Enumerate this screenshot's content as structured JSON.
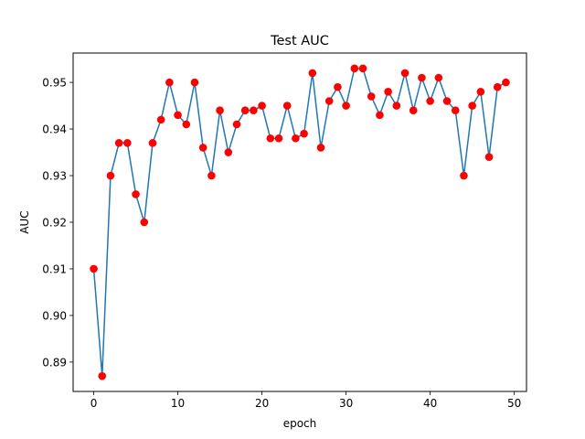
{
  "chart_data": {
    "type": "line",
    "title": "Test AUC",
    "xlabel": "epoch",
    "ylabel": "AUC",
    "xlim": [
      -2.45,
      51.45
    ],
    "ylim": [
      0.8837,
      0.9563
    ],
    "xticks": [
      0,
      10,
      20,
      30,
      40,
      50
    ],
    "yticks": [
      0.89,
      0.9,
      0.91,
      0.92,
      0.93,
      0.94,
      0.95
    ],
    "ytick_labels": [
      "0.89",
      "0.90",
      "0.91",
      "0.92",
      "0.93",
      "0.94",
      "0.95"
    ],
    "grid": false,
    "line_color": "#1f77b4",
    "marker_color": "#ff0000",
    "series": [
      {
        "x": [
          0,
          1,
          2,
          3,
          4,
          5,
          6,
          7,
          8,
          9,
          10,
          11,
          12,
          13,
          14,
          15,
          16,
          17,
          18,
          19,
          20,
          21,
          22,
          23,
          24,
          25,
          26,
          27,
          28,
          29,
          30,
          31,
          32,
          33,
          34,
          35,
          36,
          37,
          38,
          39,
          40,
          41,
          42,
          43,
          44,
          45,
          46,
          47,
          48,
          49
        ],
        "values": [
          0.91,
          0.887,
          0.93,
          0.937,
          0.937,
          0.926,
          0.92,
          0.937,
          0.942,
          0.95,
          0.943,
          0.941,
          0.95,
          0.936,
          0.93,
          0.944,
          0.935,
          0.941,
          0.944,
          0.944,
          0.945,
          0.938,
          0.938,
          0.945,
          0.938,
          0.939,
          0.952,
          0.936,
          0.946,
          0.949,
          0.945,
          0.953,
          0.953,
          0.947,
          0.943,
          0.948,
          0.945,
          0.952,
          0.944,
          0.951,
          0.946,
          0.951,
          0.946,
          0.944,
          0.93,
          0.945,
          0.948,
          0.934,
          0.949,
          0.95
        ]
      }
    ]
  }
}
